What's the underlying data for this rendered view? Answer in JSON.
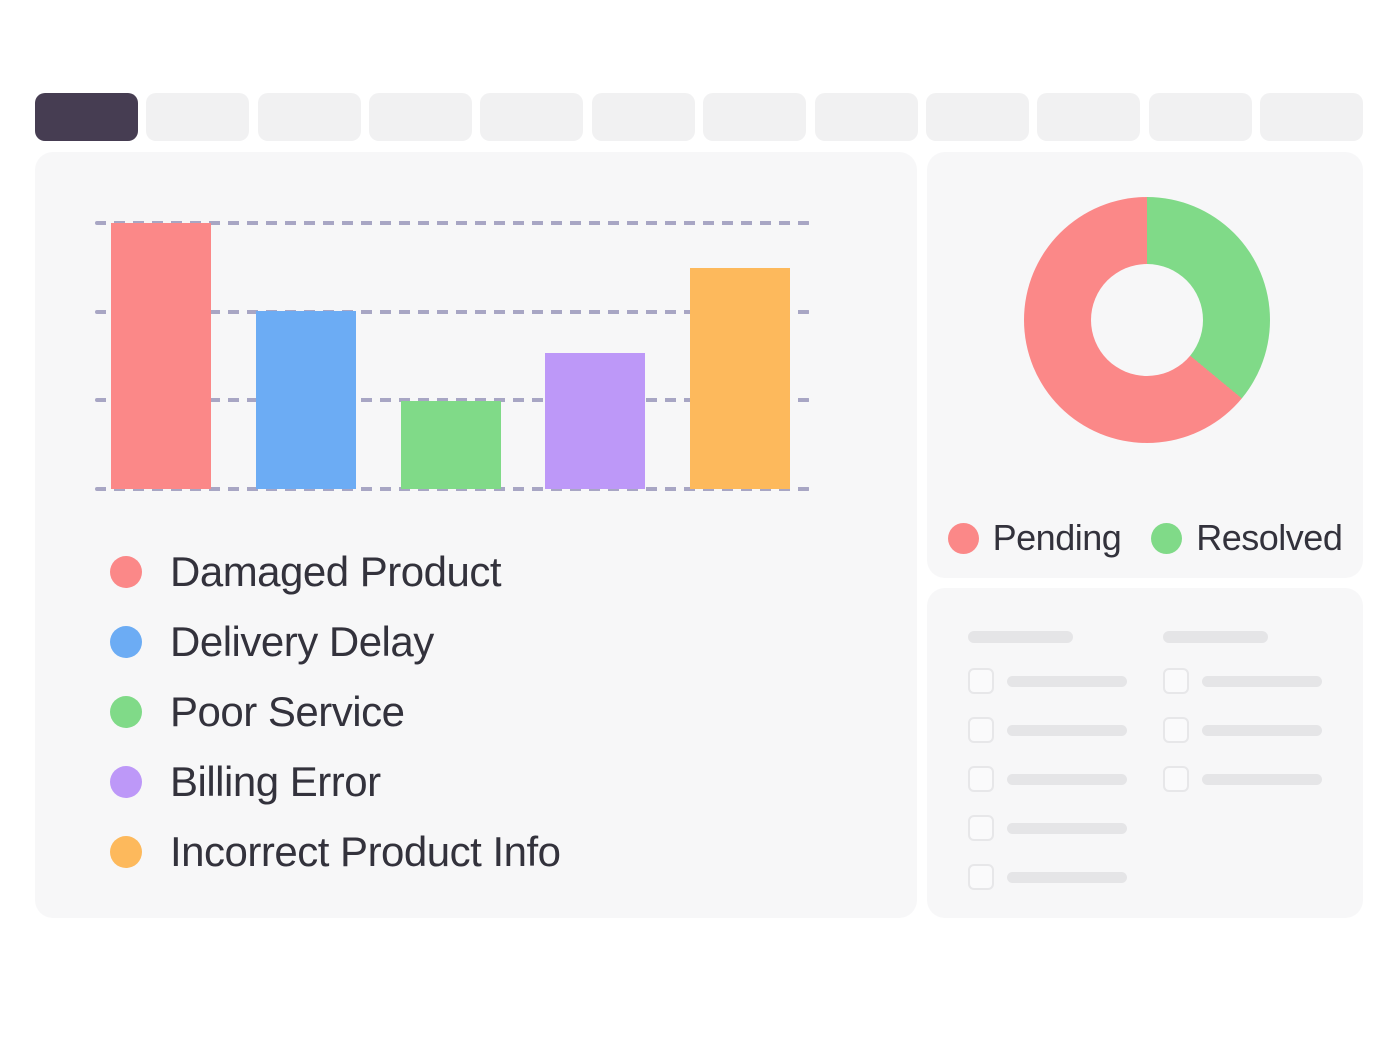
{
  "tab_bar": {
    "tab_count": 12,
    "active_tab_index": 0
  },
  "colors": {
    "page_bg": "#ffffff",
    "panel_bg": "#f7f7f8",
    "tab_bg": "#f1f1f2",
    "tab_active_bg": "#463d52",
    "gridline": "#a8a6c4",
    "text": "#33323c",
    "skeleton": "#e5e5e7",
    "checkbox_border": "#e7e7e9"
  },
  "chart_data": [
    {
      "type": "bar",
      "title": "",
      "categories": [
        "Damaged Product",
        "Delivery Delay",
        "Poor Service",
        "Billing Error",
        "Incorrect Product Info"
      ],
      "values": [
        100,
        67,
        33,
        51,
        83
      ],
      "values_note": "estimated % of tallest bar; gridlines at 0/33/67/100, no numeric axis labels shown",
      "colors": [
        "#fb8888",
        "#6cacf4",
        "#80da88",
        "#bd98f8",
        "#fdb95c"
      ],
      "ylim": [
        0,
        100
      ],
      "grid": "4 horizontal dashed lines",
      "legend_position": "below-left"
    },
    {
      "type": "pie",
      "donut": true,
      "labels": [
        "Pending",
        "Resolved"
      ],
      "values": [
        64,
        36
      ],
      "values_note": "estimated from arc angles; green starts at 12 o'clock clockwise",
      "colors": [
        "#fb8888",
        "#80da88"
      ],
      "legend_position": "bottom"
    }
  ],
  "skeleton_panel": {
    "columns": [
      {
        "header": true,
        "rows": 5
      },
      {
        "header": true,
        "rows": 3
      }
    ]
  }
}
